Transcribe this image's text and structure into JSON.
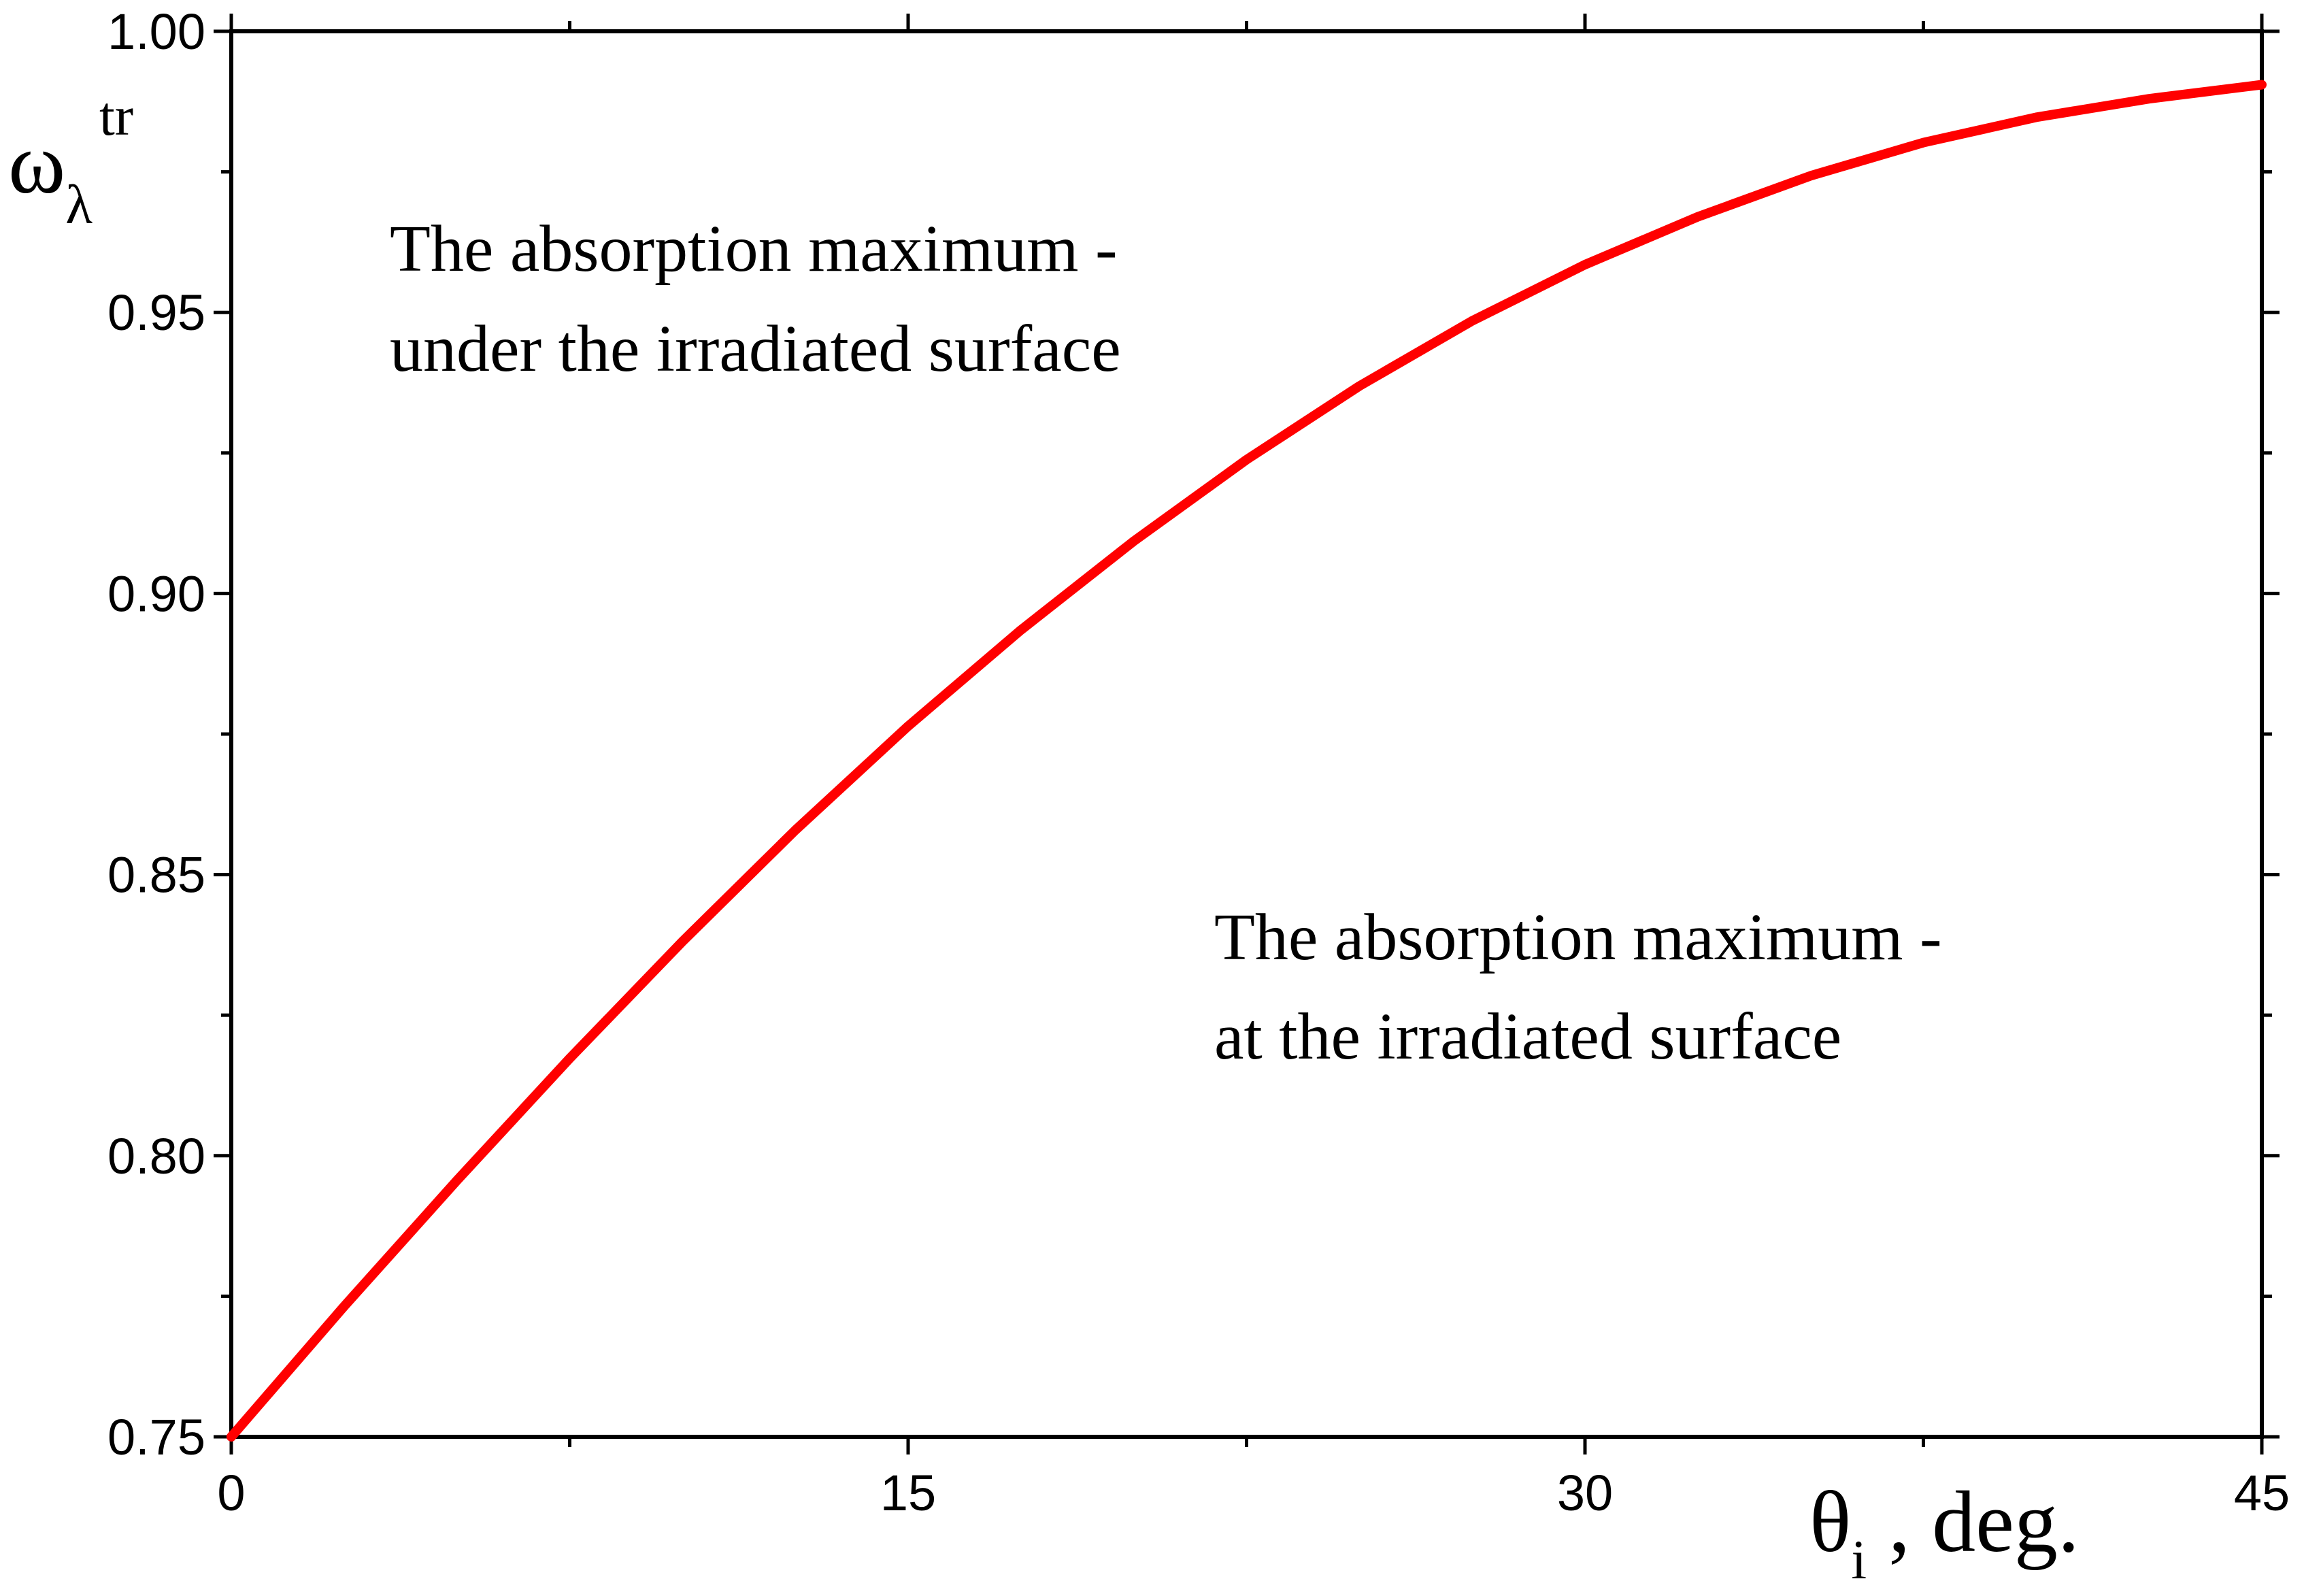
{
  "chart_data": {
    "type": "line",
    "xlabel": {
      "symbol": "θ",
      "subscript": "i",
      "suffix": " , deg."
    },
    "ylabel": {
      "symbol": "ω",
      "subscript": "λ",
      "superscript": "tr"
    },
    "xlim": [
      0,
      45
    ],
    "ylim": [
      0.75,
      1.0
    ],
    "x_ticks": [
      "0",
      "15",
      "30",
      "45"
    ],
    "y_ticks": [
      "0.75",
      "0.80",
      "0.85",
      "0.90",
      "0.95",
      "1.00"
    ],
    "grid": false,
    "line_color": "#ff0000",
    "series": [
      {
        "x": [
          0,
          2.5,
          5,
          7.5,
          10,
          12.5,
          15,
          17.5,
          20,
          22.5,
          25,
          27.5,
          30,
          32.5,
          35,
          37.5,
          40,
          42.5,
          45
        ],
        "y": [
          0.75,
          0.7732,
          0.7956,
          0.8173,
          0.8381,
          0.8579,
          0.8764,
          0.8935,
          0.9093,
          0.9238,
          0.9369,
          0.9485,
          0.9585,
          0.967,
          0.9743,
          0.9802,
          0.9847,
          0.988,
          0.9905
        ]
      }
    ],
    "annotations": [
      {
        "lines": [
          "The absorption maximum -",
          "under the irradiated surface"
        ]
      },
      {
        "lines": [
          "The absorption maximum -",
          "at the irradiated surface"
        ]
      }
    ]
  }
}
